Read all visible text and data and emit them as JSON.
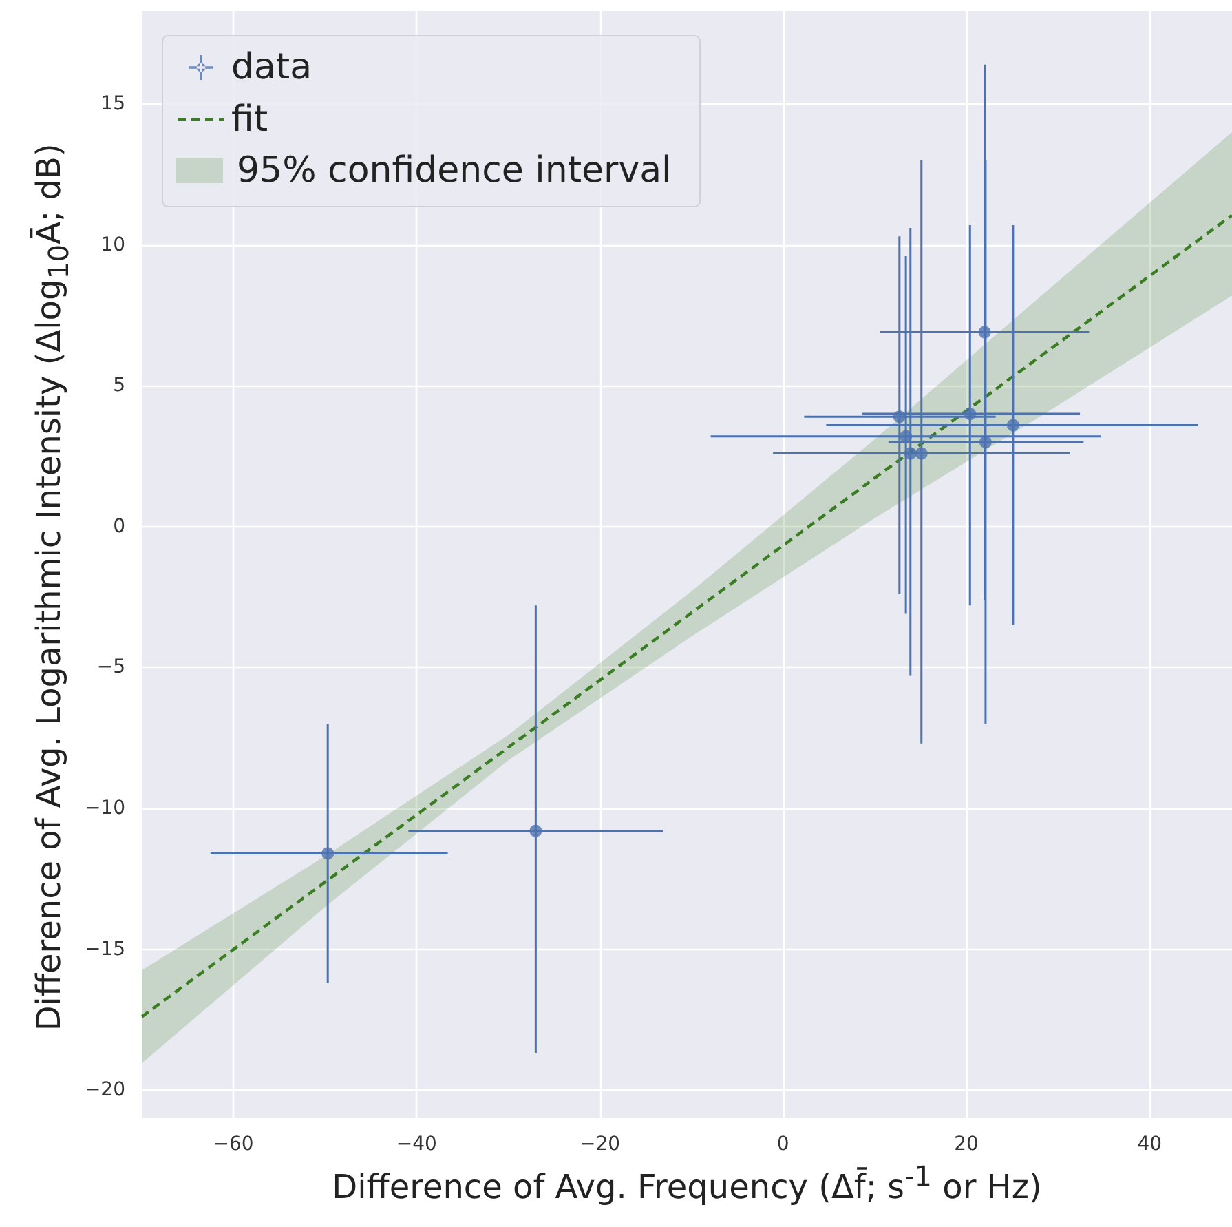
{
  "chart_data": {
    "type": "scatter",
    "xlabel": "Difference of Avg. Frequency (Δf̄; s$^{-1}$ or Hz)",
    "ylabel": "Difference of Avg. Logarithmic Intensity (Δlog$_{10}$Ā; dB)",
    "xlim": [
      -70,
      49
    ],
    "xticks": [
      -60,
      -40,
      -20,
      0,
      20,
      40
    ],
    "ylim": [
      -21,
      18.3
    ],
    "yticks": [
      -20,
      -15,
      -10,
      -5,
      0,
      5,
      10,
      15
    ],
    "grid": true,
    "legend": "top left",
    "marker": "circle",
    "annotations": [
      "95% confidence interval"
    ],
    "series": [
      {
        "name": "data",
        "type": "scatter",
        "color": "#4c72b0",
        "x": [
          -49.7,
          -27.0,
          22.0,
          12.7,
          20.4,
          22.1,
          25.1,
          13.4,
          13.9,
          15.1
        ],
        "values": [
          -11.6,
          -10.8,
          6.9,
          3.9,
          4.0,
          3.0,
          3.6,
          3.2,
          2.6,
          2.6
        ],
        "xerrors": [
          [
            -62.5,
            -36.6
          ],
          [
            -40.9,
            -13.1
          ],
          [
            10.6,
            33.4
          ],
          [
            2.3,
            23.2
          ],
          [
            8.6,
            32.4
          ],
          [
            11.5,
            32.8
          ],
          [
            4.7,
            45.3
          ],
          [
            -7.9,
            34.7
          ],
          null,
          [
            -1.1,
            31.3
          ]
        ],
        "errors": [
          [
            -16.2,
            -7.0
          ],
          [
            -18.7,
            -2.8
          ],
          [
            -2.6,
            16.4
          ],
          [
            -2.4,
            10.3
          ],
          [
            -2.8,
            10.7
          ],
          [
            -7.0,
            13.0
          ],
          [
            -3.5,
            10.7
          ],
          [
            -3.1,
            9.6
          ],
          [
            -5.3,
            10.6
          ],
          [
            -7.7,
            13.0
          ]
        ]
      },
      {
        "name": "fit",
        "type": "line",
        "marker": "none",
        "line_style": "dashed",
        "color": "#3a7d22",
        "x": [
          -70,
          -50,
          -30,
          -10,
          10,
          30,
          49
        ],
        "values": [
          -17.4,
          -12.62,
          -7.84,
          -3.06,
          1.72,
          6.5,
          11.05
        ],
        "lower": [
          -19.05,
          -13.5,
          -8.3,
          -3.9,
          0.3,
          4.3,
          8.2
        ],
        "upper": [
          -15.75,
          -11.7,
          -7.4,
          -2.3,
          3.1,
          8.7,
          14.0
        ]
      }
    ]
  }
}
